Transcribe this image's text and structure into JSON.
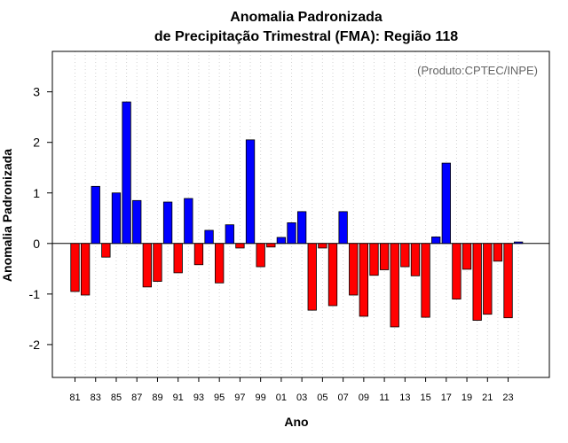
{
  "chart_data": {
    "type": "bar",
    "title": "Anomalia Padronizada",
    "subtitle": "de Precipitação Trimestral (FMA): Região 118",
    "xlabel": "Ano",
    "ylabel": "Anomalia Padronizada",
    "annotation": "(Produto:CPTEC/INPE)",
    "ylim": [
      -2.65,
      3.8
    ],
    "yticks": [
      -2,
      -1,
      0,
      1,
      2,
      3
    ],
    "grid": "vertical-dotted",
    "categories": [
      "81",
      "82",
      "83",
      "84",
      "85",
      "86",
      "87",
      "88",
      "89",
      "90",
      "91",
      "92",
      "93",
      "94",
      "95",
      "96",
      "97",
      "98",
      "99",
      "00",
      "01",
      "02",
      "03",
      "04",
      "05",
      "06",
      "07",
      "08",
      "09",
      "10",
      "11",
      "12",
      "13",
      "14",
      "15",
      "16",
      "17",
      "18",
      "19",
      "20",
      "21",
      "22",
      "23",
      "24"
    ],
    "xtick_labels": [
      "81",
      "83",
      "85",
      "87",
      "89",
      "91",
      "93",
      "95",
      "97",
      "99",
      "01",
      "03",
      "05",
      "07",
      "09",
      "11",
      "13",
      "15",
      "17",
      "19",
      "21",
      "23"
    ],
    "values": [
      -0.95,
      -1.02,
      1.13,
      -0.27,
      1.0,
      2.8,
      0.85,
      -0.86,
      -0.75,
      0.82,
      -0.58,
      0.89,
      -0.42,
      0.26,
      -0.78,
      0.37,
      -0.09,
      2.05,
      -0.46,
      -0.07,
      0.12,
      0.41,
      0.63,
      -1.32,
      -0.09,
      -1.23,
      0.63,
      -1.02,
      -1.44,
      -0.63,
      -0.52,
      -1.65,
      -0.46,
      -0.64,
      -1.46,
      0.13,
      1.59,
      -1.1,
      -0.51,
      -1.52,
      -1.4,
      -0.35,
      -1.47,
      0.03
    ],
    "colors": {
      "positive": "#0000ff",
      "negative": "#ff0000",
      "outline": "#000000",
      "grid": "#d3d3d3"
    }
  }
}
